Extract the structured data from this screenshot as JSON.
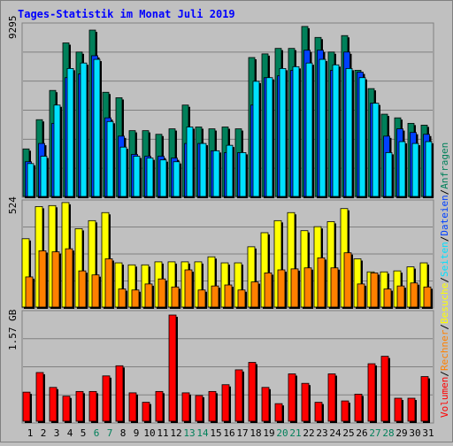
{
  "title": "Tages-Statistik im Monat Juli 2019",
  "legend": {
    "anfragen": "Anfragen",
    "dateien": "Dateien",
    "seiten": "Seiten",
    "besuche": "Besuche",
    "rechner": "Rechner",
    "volumen": "Volumen",
    "separator": "/"
  },
  "colors": {
    "background": "#c0c0c0",
    "panel": "#c0c0c0",
    "title": "#0000ff",
    "anfragen": "#00805a",
    "dateien": "#0040ff",
    "seiten": "#00e0ff",
    "besuche": "#ffff00",
    "rechner": "#ff8000",
    "volumen": "#ff0000",
    "weekend": "#00805a"
  },
  "chart_data": [
    {
      "type": "bar",
      "name": "hits",
      "max_label": "9295",
      "ylim": [
        0,
        9295
      ],
      "categories": [
        "1",
        "2",
        "3",
        "4",
        "5",
        "6",
        "7",
        "8",
        "9",
        "10",
        "11",
        "12",
        "13",
        "14",
        "15",
        "16",
        "17",
        "18",
        "19",
        "20",
        "21",
        "22",
        "23",
        "24",
        "25",
        "26",
        "27",
        "28",
        "29",
        "30",
        "31"
      ],
      "weekend_days": [
        "6",
        "7",
        "13",
        "14",
        "20",
        "21",
        "27",
        "28"
      ],
      "series": [
        {
          "name": "Anfragen",
          "values": [
            2600,
            4200,
            5800,
            8400,
            7900,
            9100,
            5700,
            5400,
            3600,
            3600,
            3400,
            3700,
            5000,
            3800,
            3700,
            3800,
            3700,
            7600,
            7800,
            8100,
            8100,
            9300,
            8700,
            7900,
            8800,
            6900,
            5900,
            4500,
            4300,
            4000,
            3900
          ]
        },
        {
          "name": "Dateien",
          "values": [
            1900,
            2900,
            4000,
            6500,
            6700,
            7700,
            4300,
            3300,
            2300,
            2200,
            2200,
            2100,
            2900,
            2900,
            2500,
            2400,
            2400,
            5000,
            6500,
            6600,
            6900,
            8000,
            8000,
            6900,
            7900,
            6800,
            5100,
            3300,
            3700,
            3500,
            3400
          ]
        },
        {
          "name": "Seiten",
          "values": [
            1800,
            2200,
            5000,
            7000,
            7300,
            7500,
            4100,
            2700,
            2200,
            2100,
            2000,
            1900,
            3800,
            2900,
            2500,
            2800,
            2400,
            6300,
            6500,
            7000,
            7100,
            7300,
            7500,
            7200,
            7000,
            6500,
            5100,
            2400,
            3000,
            2900,
            3000
          ]
        }
      ]
    },
    {
      "type": "bar",
      "name": "visits",
      "max_label": "524",
      "ylim": [
        0,
        524
      ],
      "categories": [
        "1",
        "2",
        "3",
        "4",
        "5",
        "6",
        "7",
        "8",
        "9",
        "10",
        "11",
        "12",
        "13",
        "14",
        "15",
        "16",
        "17",
        "18",
        "19",
        "20",
        "21",
        "22",
        "23",
        "24",
        "25",
        "26",
        "27",
        "28",
        "29",
        "30",
        "31"
      ],
      "series": [
        {
          "name": "Besuche",
          "values": [
            340,
            500,
            505,
            520,
            390,
            430,
            470,
            220,
            210,
            210,
            225,
            225,
            225,
            225,
            250,
            220,
            220,
            300,
            370,
            430,
            470,
            380,
            400,
            425,
            490,
            240,
            175,
            175,
            180,
            200,
            220
          ]
        },
        {
          "name": "Rechner",
          "values": [
            150,
            280,
            275,
            290,
            180,
            160,
            240,
            90,
            85,
            115,
            140,
            100,
            185,
            85,
            105,
            110,
            85,
            125,
            170,
            185,
            190,
            195,
            245,
            195,
            270,
            115,
            170,
            90,
            105,
            120,
            100
          ]
        }
      ]
    },
    {
      "type": "bar",
      "name": "volume",
      "max_label": "1.57 GB",
      "ylim": [
        0,
        1.57
      ],
      "categories": [
        "1",
        "2",
        "3",
        "4",
        "5",
        "6",
        "7",
        "8",
        "9",
        "10",
        "11",
        "12",
        "13",
        "14",
        "15",
        "16",
        "17",
        "18",
        "19",
        "20",
        "21",
        "22",
        "23",
        "24",
        "25",
        "26",
        "27",
        "28",
        "29",
        "30",
        "31"
      ],
      "series": [
        {
          "name": "Volumen",
          "values": [
            0.43,
            0.72,
            0.5,
            0.37,
            0.44,
            0.44,
            0.67,
            0.82,
            0.42,
            0.28,
            0.44,
            1.57,
            0.42,
            0.38,
            0.44,
            0.54,
            0.76,
            0.87,
            0.5,
            0.26,
            0.7,
            0.56,
            0.28,
            0.7,
            0.3,
            0.4,
            0.85,
            0.96,
            0.34,
            0.34,
            0.66
          ]
        }
      ]
    }
  ]
}
